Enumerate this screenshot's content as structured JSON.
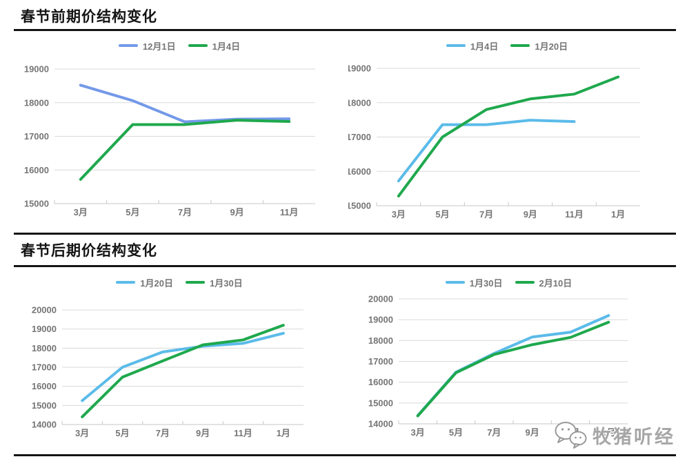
{
  "sections": [
    {
      "title": "春节前期价结构变化"
    },
    {
      "title": "春节后期价结构变化"
    }
  ],
  "watermark": {
    "text": "牧猪听经",
    "icon": "wechat-chat-bubbles"
  },
  "colors": {
    "blue_cornflower": "#7399E8",
    "blue_light": "#5BBBE9",
    "green": "#1FA84D",
    "grid": "#dadada",
    "axis": "#c7c7c7",
    "label_gray": "#757575",
    "title_black": "#141414"
  },
  "chart_data": [
    {
      "type": "line",
      "section": "春节前期价结构变化",
      "position": "top-left",
      "categories": [
        "3月",
        "5月",
        "7月",
        "9月",
        "11月"
      ],
      "series": [
        {
          "name": "12月1日",
          "color": "#7399E8",
          "values": [
            18520,
            18060,
            17430,
            17510,
            17520
          ]
        },
        {
          "name": "1月4日",
          "color": "#1FA84D",
          "values": [
            15720,
            17350,
            17350,
            17480,
            17440
          ]
        }
      ],
      "ylim": [
        15000,
        19000
      ],
      "y_step": 1000,
      "y_ticks": [
        15000,
        16000,
        17000,
        18000,
        19000
      ],
      "grid": true,
      "legend_position": "top"
    },
    {
      "type": "line",
      "section": "春节前期价结构变化",
      "position": "top-right",
      "categories": [
        "3月",
        "5月",
        "7月",
        "9月",
        "11月",
        "1月"
      ],
      "series": [
        {
          "name": "1月4日",
          "color": "#5BBBE9",
          "values": [
            15720,
            17360,
            17360,
            17490,
            17450,
            null
          ]
        },
        {
          "name": "1月20日",
          "color": "#1FA84D",
          "values": [
            15280,
            17000,
            17800,
            18110,
            18250,
            18750
          ]
        }
      ],
      "ylim": [
        15000,
        19000
      ],
      "y_step": 1000,
      "y_ticks": [
        15000,
        16000,
        17000,
        18000,
        19000
      ],
      "grid": true,
      "legend_position": "top"
    },
    {
      "type": "line",
      "section": "春节后期价结构变化",
      "position": "bottom-left",
      "categories": [
        "3月",
        "5月",
        "7月",
        "9月",
        "11月",
        "1月"
      ],
      "series": [
        {
          "name": "1月20日",
          "color": "#5BBBE9",
          "values": [
            15250,
            17000,
            17800,
            18100,
            18250,
            18780
          ]
        },
        {
          "name": "1月30日",
          "color": "#1FA84D",
          "values": [
            14400,
            16480,
            17330,
            18170,
            18430,
            19200
          ]
        }
      ],
      "ylim": [
        14000,
        20000
      ],
      "y_step": 1000,
      "y_ticks": [
        14000,
        15000,
        16000,
        17000,
        18000,
        19000,
        20000
      ],
      "grid": true,
      "legend_position": "top"
    },
    {
      "type": "line",
      "section": "春节后期价结构变化",
      "position": "bottom-right",
      "categories": [
        "3月",
        "5月",
        "7月",
        "9月",
        "11月",
        "1月"
      ],
      "series": [
        {
          "name": "1月30日",
          "color": "#5BBBE9",
          "values": [
            14400,
            16480,
            17380,
            18170,
            18400,
            19200
          ]
        },
        {
          "name": "2月10日",
          "color": "#1FA84D",
          "values": [
            14380,
            16450,
            17330,
            17800,
            18150,
            18880
          ]
        }
      ],
      "ylim": [
        14000,
        20000
      ],
      "y_step": 1000,
      "y_ticks": [
        14000,
        15000,
        16000,
        17000,
        18000,
        19000,
        20000
      ],
      "grid": true,
      "legend_position": "top"
    }
  ]
}
